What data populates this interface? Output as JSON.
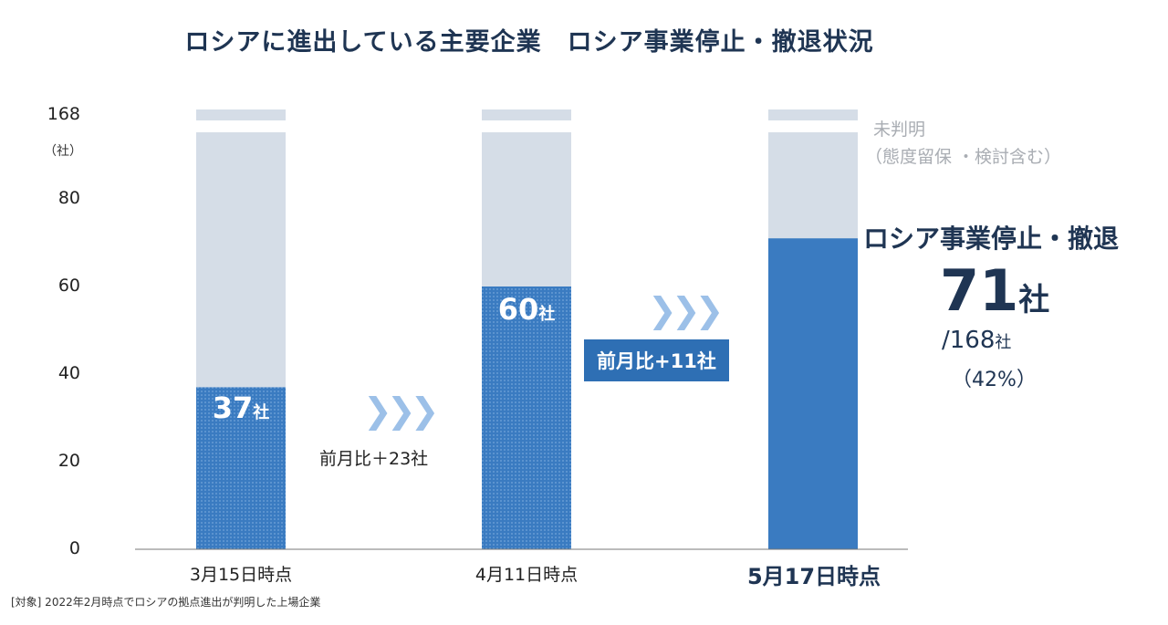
{
  "title": "ロシアに進出している主要企業　ロシア事業停止・撤退状況",
  "chart_data": {
    "type": "bar",
    "stacked": true,
    "categories": [
      "3月15日時点",
      "4月11日時点",
      "5月17日時点"
    ],
    "series": [
      {
        "name": "ロシア事業停止・撤退",
        "values": [
          37,
          60,
          71
        ],
        "color": "#3a7bc1"
      },
      {
        "name": "未判明",
        "values": [
          131,
          108,
          97
        ],
        "color": "#d5dde7"
      }
    ],
    "total": 168,
    "yticks": [
      "0",
      "20",
      "40",
      "60",
      "80",
      "168"
    ],
    "yunit": "（社）",
    "ylim": [
      0,
      168
    ],
    "bar_labels": [
      {
        "num": "37",
        "unit": "社"
      },
      {
        "num": "60",
        "unit": "社"
      }
    ]
  },
  "arrow_glyph": "❯❯❯",
  "comparison_1": "前月比＋23社",
  "comparison_2": "前月比+11社",
  "unknown_label": "未判明",
  "unknown_sub": "（態度留保 ・検討含む）",
  "highlight": {
    "title": "ロシア事業停止・撤退",
    "count": "71",
    "count_unit": "社",
    "total": "/168",
    "total_unit": "社",
    "pct": "（42%）"
  },
  "footnote": "[対象] 2022年2月時点でロシアの拠点進出が判明した上場企業",
  "colors": {
    "accent": "#2e6fb4",
    "title": "#1f3553",
    "gray": "#d5dde7"
  }
}
